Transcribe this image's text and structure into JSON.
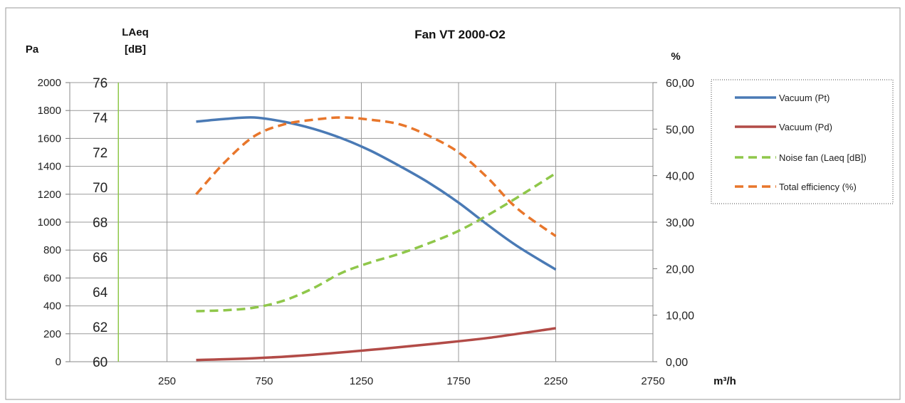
{
  "chart_data": {
    "type": "line",
    "title": "Fan VT 2000-O2",
    "axes": {
      "pressure": {
        "label": "Pa",
        "range": [
          0,
          2000
        ],
        "ticks": [
          0,
          200,
          400,
          600,
          800,
          1000,
          1200,
          1400,
          1600,
          1800,
          2000
        ]
      },
      "laeq": {
        "label_line1": "LAeq",
        "label_line2": "[dB]",
        "range": [
          60,
          76
        ],
        "ticks": [
          60,
          62,
          64,
          66,
          68,
          70,
          72,
          74,
          76
        ]
      },
      "efficiency": {
        "label": "%",
        "range": [
          0,
          60
        ],
        "ticks": [
          "0,00",
          "10,00",
          "20,00",
          "30,00",
          "40,00",
          "50,00",
          "60,00"
        ]
      },
      "x": {
        "label": "m³/h",
        "range": [
          -250,
          2750
        ],
        "ticks": [
          250,
          750,
          1250,
          1750,
          2250,
          2750
        ]
      }
    },
    "grid": true,
    "legend_position": "right",
    "series": [
      {
        "name": "Vacuum (Pt)",
        "axis": "pressure",
        "color": "#4a7ab5",
        "dash": false,
        "x": [
          400,
          550,
          700,
          850,
          1000,
          1150,
          1300,
          1450,
          1600,
          1750,
          1900,
          2050,
          2250
        ],
        "y": [
          1720,
          1740,
          1750,
          1720,
          1670,
          1600,
          1510,
          1400,
          1280,
          1140,
          980,
          830,
          660
        ]
      },
      {
        "name": "Vacuum (Pd)",
        "axis": "pressure",
        "color": "#b24b47",
        "dash": false,
        "x": [
          400,
          700,
          1000,
          1300,
          1600,
          1900,
          2250
        ],
        "y": [
          12,
          25,
          50,
          85,
          125,
          170,
          240
        ]
      },
      {
        "name": "Noise fan (Laeq [dB])",
        "axis": "laeq",
        "color": "#8fc74a",
        "dash": true,
        "x": [
          400,
          550,
          700,
          850,
          1000,
          1150,
          1300,
          1450,
          1600,
          1750,
          1900,
          2050,
          2250
        ],
        "y": [
          62.9,
          62.95,
          63.1,
          63.5,
          64.2,
          65.1,
          65.7,
          66.2,
          66.8,
          67.5,
          68.4,
          69.4,
          70.8
        ]
      },
      {
        "name": "Total efficiency (%)",
        "axis": "efficiency",
        "color": "#e8762b",
        "dash": true,
        "x": [
          400,
          550,
          700,
          850,
          1000,
          1150,
          1300,
          1450,
          1600,
          1750,
          1900,
          2050,
          2250
        ],
        "y": [
          36,
          43,
          48.5,
          51,
          52,
          52.5,
          52,
          51,
          48.5,
          45,
          39.5,
          33,
          27
        ]
      }
    ]
  }
}
